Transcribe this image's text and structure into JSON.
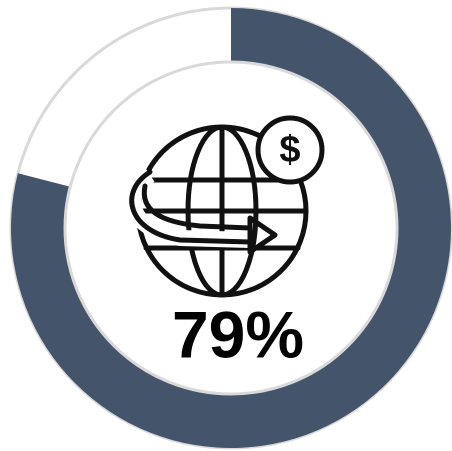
{
  "chart_data": {
    "type": "donut",
    "values": [
      79
    ],
    "value_labels": [
      "79%"
    ],
    "ylim": [
      0,
      100
    ],
    "color": "#44546a",
    "track_color": "#ffffff"
  }
}
